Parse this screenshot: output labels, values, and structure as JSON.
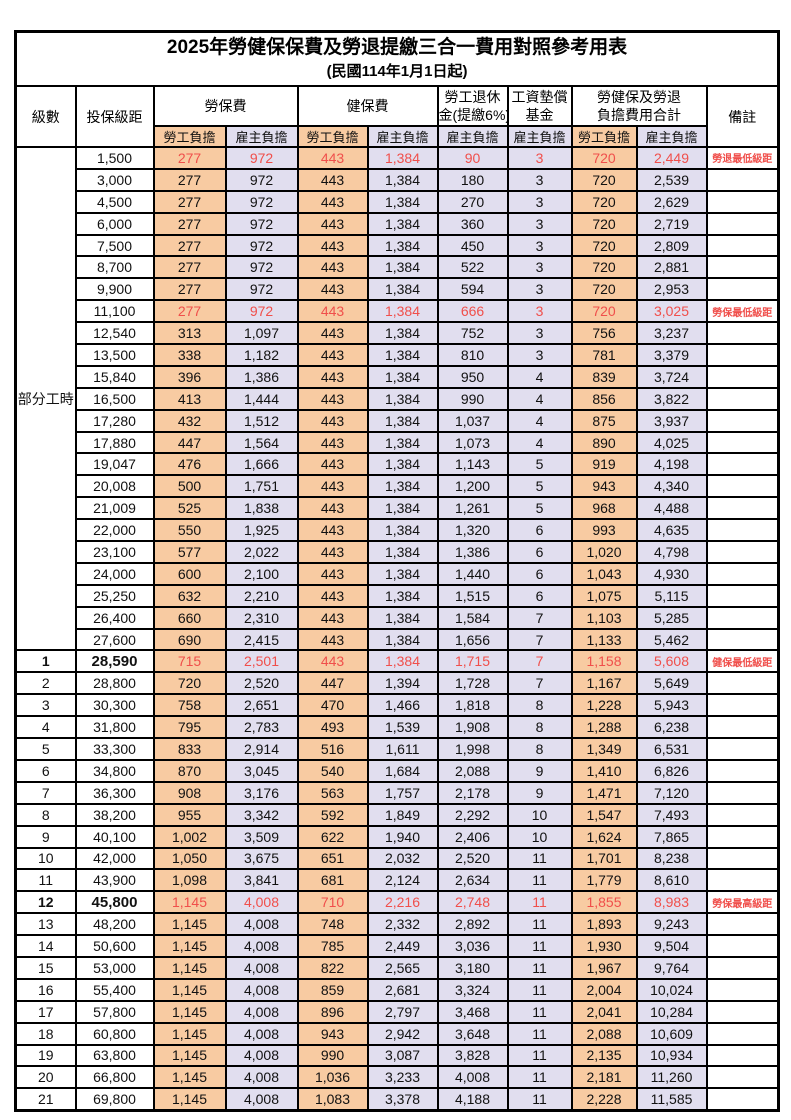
{
  "title": "2025年勞健保保費及勞退提繳三合一費用對照參考用表",
  "subtitle": "(民國114年1月1日起)",
  "colors": {
    "employee_bg": "#F8CBA2",
    "employer_bg": "#E1DEEF",
    "highlight_red": "#F04F4B",
    "border": "#000000"
  },
  "header": {
    "level": "級數",
    "bracket": "投保級距",
    "labor_insurance": "勞保費",
    "health_insurance": "健保費",
    "pension_line1": "勞工退休",
    "pension_line2": "金(提繳6%)",
    "wage_fund_line1": "工資墊償",
    "wage_fund_line2": "基金",
    "total_line1": "勞健保及勞退",
    "total_line2": "負擔費用合計",
    "remark": "備註",
    "employee": "勞工負擔",
    "employer": "雇主負擔"
  },
  "part_time_label": "部分工時",
  "part_time_rowspan": 23,
  "rows": [
    {
      "level": "",
      "bracket": "1,500",
      "values": [
        "277",
        "972",
        "443",
        "1,384",
        "90",
        "3",
        "720",
        "2,449"
      ],
      "remark": "勞退最低級距",
      "red": true,
      "bold": false
    },
    {
      "level": "",
      "bracket": "3,000",
      "values": [
        "277",
        "972",
        "443",
        "1,384",
        "180",
        "3",
        "720",
        "2,539"
      ],
      "remark": "",
      "red": false,
      "bold": false
    },
    {
      "level": "",
      "bracket": "4,500",
      "values": [
        "277",
        "972",
        "443",
        "1,384",
        "270",
        "3",
        "720",
        "2,629"
      ],
      "remark": "",
      "red": false,
      "bold": false
    },
    {
      "level": "",
      "bracket": "6,000",
      "values": [
        "277",
        "972",
        "443",
        "1,384",
        "360",
        "3",
        "720",
        "2,719"
      ],
      "remark": "",
      "red": false,
      "bold": false
    },
    {
      "level": "",
      "bracket": "7,500",
      "values": [
        "277",
        "972",
        "443",
        "1,384",
        "450",
        "3",
        "720",
        "2,809"
      ],
      "remark": "",
      "red": false,
      "bold": false
    },
    {
      "level": "",
      "bracket": "8,700",
      "values": [
        "277",
        "972",
        "443",
        "1,384",
        "522",
        "3",
        "720",
        "2,881"
      ],
      "remark": "",
      "red": false,
      "bold": false
    },
    {
      "level": "",
      "bracket": "9,900",
      "values": [
        "277",
        "972",
        "443",
        "1,384",
        "594",
        "3",
        "720",
        "2,953"
      ],
      "remark": "",
      "red": false,
      "bold": false
    },
    {
      "level": "",
      "bracket": "11,100",
      "values": [
        "277",
        "972",
        "443",
        "1,384",
        "666",
        "3",
        "720",
        "3,025"
      ],
      "remark": "勞保最低級距",
      "red": true,
      "bold": false
    },
    {
      "level": "",
      "bracket": "12,540",
      "values": [
        "313",
        "1,097",
        "443",
        "1,384",
        "752",
        "3",
        "756",
        "3,237"
      ],
      "remark": "",
      "red": false,
      "bold": false
    },
    {
      "level": "",
      "bracket": "13,500",
      "values": [
        "338",
        "1,182",
        "443",
        "1,384",
        "810",
        "3",
        "781",
        "3,379"
      ],
      "remark": "",
      "red": false,
      "bold": false
    },
    {
      "level": "",
      "bracket": "15,840",
      "values": [
        "396",
        "1,386",
        "443",
        "1,384",
        "950",
        "4",
        "839",
        "3,724"
      ],
      "remark": "",
      "red": false,
      "bold": false
    },
    {
      "level": "",
      "bracket": "16,500",
      "values": [
        "413",
        "1,444",
        "443",
        "1,384",
        "990",
        "4",
        "856",
        "3,822"
      ],
      "remark": "",
      "red": false,
      "bold": false
    },
    {
      "level": "",
      "bracket": "17,280",
      "values": [
        "432",
        "1,512",
        "443",
        "1,384",
        "1,037",
        "4",
        "875",
        "3,937"
      ],
      "remark": "",
      "red": false,
      "bold": false
    },
    {
      "level": "",
      "bracket": "17,880",
      "values": [
        "447",
        "1,564",
        "443",
        "1,384",
        "1,073",
        "4",
        "890",
        "4,025"
      ],
      "remark": "",
      "red": false,
      "bold": false
    },
    {
      "level": "",
      "bracket": "19,047",
      "values": [
        "476",
        "1,666",
        "443",
        "1,384",
        "1,143",
        "5",
        "919",
        "4,198"
      ],
      "remark": "",
      "red": false,
      "bold": false
    },
    {
      "level": "",
      "bracket": "20,008",
      "values": [
        "500",
        "1,751",
        "443",
        "1,384",
        "1,200",
        "5",
        "943",
        "4,340"
      ],
      "remark": "",
      "red": false,
      "bold": false
    },
    {
      "level": "",
      "bracket": "21,009",
      "values": [
        "525",
        "1,838",
        "443",
        "1,384",
        "1,261",
        "5",
        "968",
        "4,488"
      ],
      "remark": "",
      "red": false,
      "bold": false
    },
    {
      "level": "",
      "bracket": "22,000",
      "values": [
        "550",
        "1,925",
        "443",
        "1,384",
        "1,320",
        "6",
        "993",
        "4,635"
      ],
      "remark": "",
      "red": false,
      "bold": false
    },
    {
      "level": "",
      "bracket": "23,100",
      "values": [
        "577",
        "2,022",
        "443",
        "1,384",
        "1,386",
        "6",
        "1,020",
        "4,798"
      ],
      "remark": "",
      "red": false,
      "bold": false
    },
    {
      "level": "",
      "bracket": "24,000",
      "values": [
        "600",
        "2,100",
        "443",
        "1,384",
        "1,440",
        "6",
        "1,043",
        "4,930"
      ],
      "remark": "",
      "red": false,
      "bold": false
    },
    {
      "level": "",
      "bracket": "25,250",
      "values": [
        "632",
        "2,210",
        "443",
        "1,384",
        "1,515",
        "6",
        "1,075",
        "5,115"
      ],
      "remark": "",
      "red": false,
      "bold": false
    },
    {
      "level": "",
      "bracket": "26,400",
      "values": [
        "660",
        "2,310",
        "443",
        "1,384",
        "1,584",
        "7",
        "1,103",
        "5,285"
      ],
      "remark": "",
      "red": false,
      "bold": false
    },
    {
      "level": "",
      "bracket": "27,600",
      "values": [
        "690",
        "2,415",
        "443",
        "1,384",
        "1,656",
        "7",
        "1,133",
        "5,462"
      ],
      "remark": "",
      "red": false,
      "bold": false
    },
    {
      "level": "1",
      "bracket": "28,590",
      "values": [
        "715",
        "2,501",
        "443",
        "1,384",
        "1,715",
        "7",
        "1,158",
        "5,608"
      ],
      "remark": "健保最低級距",
      "red": true,
      "bold": true
    },
    {
      "level": "2",
      "bracket": "28,800",
      "values": [
        "720",
        "2,520",
        "447",
        "1,394",
        "1,728",
        "7",
        "1,167",
        "5,649"
      ],
      "remark": "",
      "red": false,
      "bold": false
    },
    {
      "level": "3",
      "bracket": "30,300",
      "values": [
        "758",
        "2,651",
        "470",
        "1,466",
        "1,818",
        "8",
        "1,228",
        "5,943"
      ],
      "remark": "",
      "red": false,
      "bold": false
    },
    {
      "level": "4",
      "bracket": "31,800",
      "values": [
        "795",
        "2,783",
        "493",
        "1,539",
        "1,908",
        "8",
        "1,288",
        "6,238"
      ],
      "remark": "",
      "red": false,
      "bold": false
    },
    {
      "level": "5",
      "bracket": "33,300",
      "values": [
        "833",
        "2,914",
        "516",
        "1,611",
        "1,998",
        "8",
        "1,349",
        "6,531"
      ],
      "remark": "",
      "red": false,
      "bold": false
    },
    {
      "level": "6",
      "bracket": "34,800",
      "values": [
        "870",
        "3,045",
        "540",
        "1,684",
        "2,088",
        "9",
        "1,410",
        "6,826"
      ],
      "remark": "",
      "red": false,
      "bold": false
    },
    {
      "level": "7",
      "bracket": "36,300",
      "values": [
        "908",
        "3,176",
        "563",
        "1,757",
        "2,178",
        "9",
        "1,471",
        "7,120"
      ],
      "remark": "",
      "red": false,
      "bold": false
    },
    {
      "level": "8",
      "bracket": "38,200",
      "values": [
        "955",
        "3,342",
        "592",
        "1,849",
        "2,292",
        "10",
        "1,547",
        "7,493"
      ],
      "remark": "",
      "red": false,
      "bold": false
    },
    {
      "level": "9",
      "bracket": "40,100",
      "values": [
        "1,002",
        "3,509",
        "622",
        "1,940",
        "2,406",
        "10",
        "1,624",
        "7,865"
      ],
      "remark": "",
      "red": false,
      "bold": false
    },
    {
      "level": "10",
      "bracket": "42,000",
      "values": [
        "1,050",
        "3,675",
        "651",
        "2,032",
        "2,520",
        "11",
        "1,701",
        "8,238"
      ],
      "remark": "",
      "red": false,
      "bold": false
    },
    {
      "level": "11",
      "bracket": "43,900",
      "values": [
        "1,098",
        "3,841",
        "681",
        "2,124",
        "2,634",
        "11",
        "1,779",
        "8,610"
      ],
      "remark": "",
      "red": false,
      "bold": false
    },
    {
      "level": "12",
      "bracket": "45,800",
      "values": [
        "1,145",
        "4,008",
        "710",
        "2,216",
        "2,748",
        "11",
        "1,855",
        "8,983"
      ],
      "remark": "勞保最高級距",
      "red": true,
      "bold": true
    },
    {
      "level": "13",
      "bracket": "48,200",
      "values": [
        "1,145",
        "4,008",
        "748",
        "2,332",
        "2,892",
        "11",
        "1,893",
        "9,243"
      ],
      "remark": "",
      "red": false,
      "bold": false
    },
    {
      "level": "14",
      "bracket": "50,600",
      "values": [
        "1,145",
        "4,008",
        "785",
        "2,449",
        "3,036",
        "11",
        "1,930",
        "9,504"
      ],
      "remark": "",
      "red": false,
      "bold": false
    },
    {
      "level": "15",
      "bracket": "53,000",
      "values": [
        "1,145",
        "4,008",
        "822",
        "2,565",
        "3,180",
        "11",
        "1,967",
        "9,764"
      ],
      "remark": "",
      "red": false,
      "bold": false
    },
    {
      "level": "16",
      "bracket": "55,400",
      "values": [
        "1,145",
        "4,008",
        "859",
        "2,681",
        "3,324",
        "11",
        "2,004",
        "10,024"
      ],
      "remark": "",
      "red": false,
      "bold": false
    },
    {
      "level": "17",
      "bracket": "57,800",
      "values": [
        "1,145",
        "4,008",
        "896",
        "2,797",
        "3,468",
        "11",
        "2,041",
        "10,284"
      ],
      "remark": "",
      "red": false,
      "bold": false
    },
    {
      "level": "18",
      "bracket": "60,800",
      "values": [
        "1,145",
        "4,008",
        "943",
        "2,942",
        "3,648",
        "11",
        "2,088",
        "10,609"
      ],
      "remark": "",
      "red": false,
      "bold": false
    },
    {
      "level": "19",
      "bracket": "63,800",
      "values": [
        "1,145",
        "4,008",
        "990",
        "3,087",
        "3,828",
        "11",
        "2,135",
        "10,934"
      ],
      "remark": "",
      "red": false,
      "bold": false
    },
    {
      "level": "20",
      "bracket": "66,800",
      "values": [
        "1,145",
        "4,008",
        "1,036",
        "3,233",
        "4,008",
        "11",
        "2,181",
        "11,260"
      ],
      "remark": "",
      "red": false,
      "bold": false
    },
    {
      "level": "21",
      "bracket": "69,800",
      "values": [
        "1,145",
        "4,008",
        "1,083",
        "3,378",
        "4,188",
        "11",
        "2,228",
        "11,585"
      ],
      "remark": "",
      "red": false,
      "bold": false
    }
  ]
}
